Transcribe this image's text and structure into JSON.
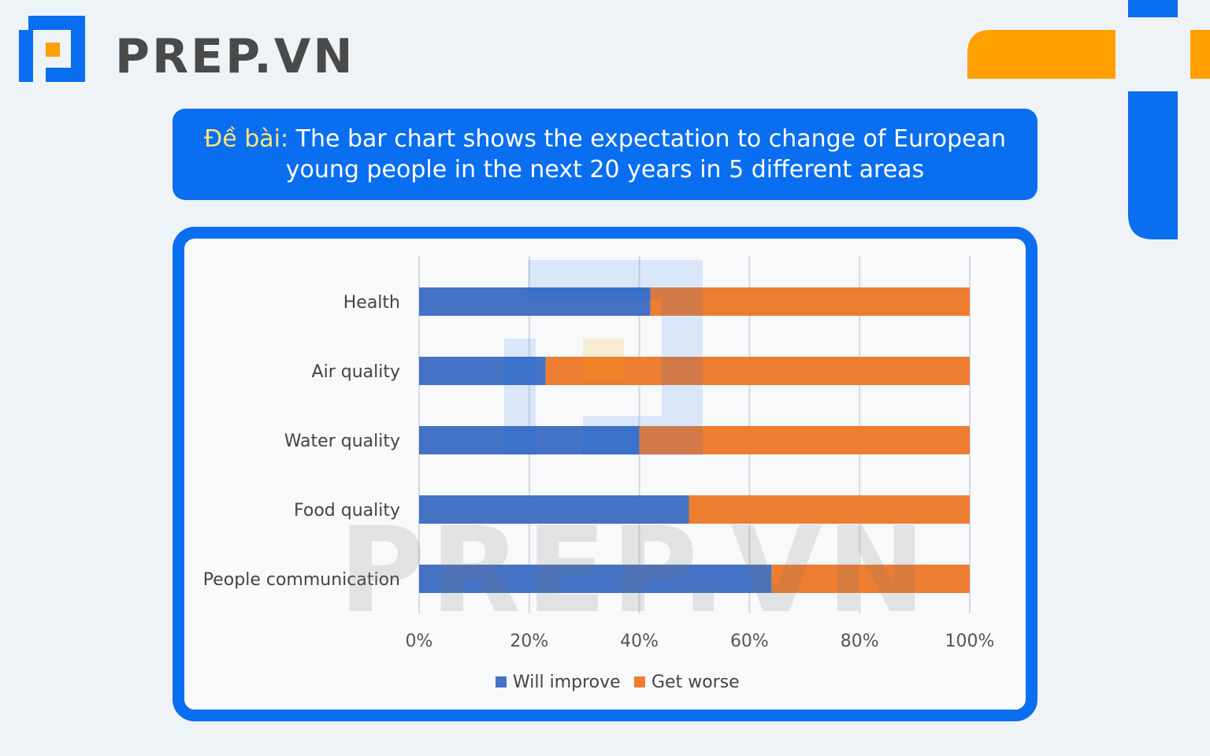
{
  "brand": {
    "name": "PREP.VN",
    "primary_color": "#0a6ef0",
    "accent_color": "#ff9f00"
  },
  "prompt": {
    "label": "Đề bài:",
    "text": "The bar chart shows the expectation to change of European young people in the next 20 years in 5 different areas"
  },
  "watermark": "PREP.VN",
  "chart_data": {
    "type": "bar",
    "orientation": "horizontal",
    "stacked": true,
    "categories": [
      "Health",
      "Air quality",
      "Water quality",
      "Food quality",
      "People communication"
    ],
    "series": [
      {
        "name": "Will improve",
        "color": "#4472c4",
        "values": [
          42,
          23,
          40,
          49,
          64
        ]
      },
      {
        "name": "Get worse",
        "color": "#ed7d31",
        "values": [
          58,
          77,
          60,
          51,
          36
        ]
      }
    ],
    "xlim": [
      0,
      100
    ],
    "x_ticks": [
      "0%",
      "20%",
      "40%",
      "60%",
      "80%",
      "100%"
    ],
    "grid": true,
    "legend_position": "bottom"
  }
}
